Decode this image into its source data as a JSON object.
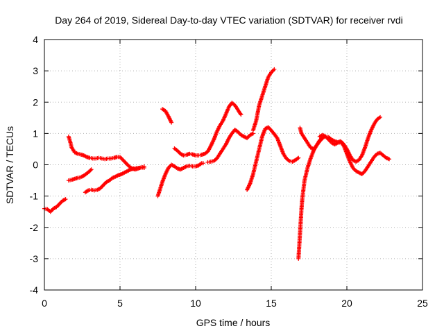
{
  "chart_data": {
    "type": "scatter",
    "title": "Day 264 of 2019, Sidereal Day-to-day VTEC variation (SDTVAR) for receiver rvdi",
    "xlabel": "GPS time / hours",
    "ylabel": "SDTVAR / TECUs",
    "xlim": [
      0,
      25
    ],
    "ylim": [
      -4,
      4
    ],
    "xticks": [
      "0",
      "5",
      "10",
      "15",
      "20",
      "25"
    ],
    "yticks": [
      "-4",
      "-3",
      "-2",
      "-1",
      "0",
      "1",
      "2",
      "3",
      "4"
    ],
    "grid": true,
    "legend": "none",
    "marker": "plus",
    "color": "#ff0000",
    "series": [
      {
        "x": [
          0.0,
          0.2,
          0.4,
          0.6,
          0.8,
          1.0,
          1.2,
          1.4
        ],
        "y": [
          -1.4,
          -1.42,
          -1.5,
          -1.4,
          -1.35,
          -1.25,
          -1.15,
          -1.1
        ]
      },
      {
        "x": [
          1.6,
          1.7,
          1.8,
          2.0,
          2.2,
          2.4,
          2.6,
          2.8,
          3.0,
          3.2,
          3.4,
          3.6,
          3.8,
          4.0,
          4.2,
          4.4,
          4.6,
          4.8,
          5.0,
          5.2,
          5.4,
          5.6,
          5.8,
          6.0,
          6.2,
          6.4,
          6.6
        ],
        "y": [
          0.9,
          0.75,
          0.55,
          0.4,
          0.35,
          0.33,
          0.3,
          0.25,
          0.22,
          0.2,
          0.2,
          0.22,
          0.2,
          0.18,
          0.2,
          0.2,
          0.22,
          0.25,
          0.25,
          0.15,
          0.05,
          -0.05,
          -0.12,
          -0.15,
          -0.12,
          -0.08,
          -0.1
        ]
      },
      {
        "x": [
          1.6,
          1.8,
          2.0,
          2.2,
          2.4,
          2.6,
          2.8,
          3.0,
          3.1
        ],
        "y": [
          -0.5,
          -0.48,
          -0.45,
          -0.42,
          -0.4,
          -0.35,
          -0.28,
          -0.2,
          -0.15
        ]
      },
      {
        "x": [
          2.7,
          2.9,
          3.1,
          3.3,
          3.5,
          3.7,
          3.9,
          4.1,
          4.3,
          4.5,
          4.7,
          4.9,
          5.1,
          5.3,
          5.5,
          5.7,
          5.9,
          6.1,
          6.3,
          6.5,
          6.6
        ],
        "y": [
          -0.88,
          -0.82,
          -0.8,
          -0.82,
          -0.8,
          -0.75,
          -0.65,
          -0.55,
          -0.5,
          -0.42,
          -0.38,
          -0.33,
          -0.3,
          -0.25,
          -0.2,
          -0.15,
          -0.12,
          -0.1,
          -0.1,
          -0.08,
          -0.05
        ]
      },
      {
        "x": [
          7.5,
          7.6,
          7.7,
          7.8,
          8.0,
          8.2,
          8.4,
          8.6,
          8.8,
          9.0,
          9.2,
          9.4,
          9.6,
          9.8,
          10.0,
          10.2,
          10.4,
          10.5
        ],
        "y": [
          -1.0,
          -0.85,
          -0.7,
          -0.55,
          -0.3,
          -0.1,
          0.0,
          -0.05,
          -0.12,
          -0.15,
          -0.1,
          -0.05,
          -0.03,
          -0.05,
          -0.05,
          -0.02,
          0.05,
          0.05
        ]
      },
      {
        "x": [
          7.8,
          8.0,
          8.2,
          8.4
        ],
        "y": [
          1.78,
          1.72,
          1.55,
          1.35
        ]
      },
      {
        "x": [
          8.6,
          8.8,
          9.0,
          9.2,
          9.4,
          9.6,
          9.8,
          10.0,
          10.2,
          10.4,
          10.6,
          10.8,
          11.0,
          11.2,
          11.4,
          11.6,
          11.8,
          12.0,
          12.2,
          12.4,
          12.6,
          12.8,
          13.0
        ],
        "y": [
          0.52,
          0.45,
          0.35,
          0.3,
          0.32,
          0.35,
          0.33,
          0.3,
          0.3,
          0.32,
          0.35,
          0.42,
          0.6,
          0.8,
          1.05,
          1.25,
          1.4,
          1.62,
          1.85,
          1.98,
          1.9,
          1.75,
          1.6
        ]
      },
      {
        "x": [
          10.8,
          11.0,
          11.2,
          11.4,
          11.6,
          11.8,
          12.0,
          12.2,
          12.4,
          12.6,
          12.8,
          13.0,
          13.2,
          13.4,
          13.6,
          13.8
        ],
        "y": [
          0.08,
          0.1,
          0.12,
          0.2,
          0.35,
          0.5,
          0.65,
          0.85,
          1.0,
          1.12,
          1.05,
          0.95,
          0.9,
          0.85,
          0.95,
          1.0
        ]
      },
      {
        "x": [
          13.4,
          13.6,
          13.8,
          14.0,
          14.2,
          14.4,
          14.6,
          14.8,
          15.0,
          15.2
        ],
        "y": [
          -0.8,
          -0.6,
          -0.3,
          0.1,
          0.5,
          0.9,
          1.15,
          1.2,
          1.1,
          0.98
        ]
      },
      {
        "x": [
          13.8,
          14.0,
          14.2,
          14.4,
          14.6,
          14.8,
          15.0,
          15.2
        ],
        "y": [
          1.1,
          1.4,
          1.9,
          2.2,
          2.5,
          2.8,
          2.95,
          3.05
        ]
      },
      {
        "x": [
          15.2,
          15.4,
          15.6,
          15.8,
          16.0,
          16.2,
          16.4,
          16.6,
          16.8
        ],
        "y": [
          0.98,
          0.85,
          0.6,
          0.35,
          0.2,
          0.12,
          0.1,
          0.15,
          0.22
        ]
      },
      {
        "x": [
          16.8,
          16.85,
          16.9,
          16.95,
          17.0,
          17.05,
          17.1,
          17.15,
          17.2,
          17.3,
          17.4,
          17.5,
          17.6,
          17.8,
          18.0,
          18.2,
          18.4
        ],
        "y": [
          -3.0,
          -2.6,
          -2.2,
          -1.8,
          -1.4,
          -1.1,
          -0.9,
          -0.7,
          -0.5,
          -0.3,
          -0.1,
          0.05,
          0.2,
          0.45,
          0.62,
          0.75,
          0.85
        ]
      },
      {
        "x": [
          16.9,
          17.0,
          17.2,
          17.4,
          17.6,
          17.8,
          18.0,
          18.2,
          18.4,
          18.6,
          18.8,
          19.0,
          19.2,
          19.4,
          19.6,
          19.8,
          20.0,
          20.2,
          20.4,
          20.6,
          20.8,
          21.0,
          21.2,
          21.4,
          21.6,
          21.8,
          22.0,
          22.2
        ],
        "y": [
          1.18,
          1.0,
          0.85,
          0.7,
          0.55,
          0.5,
          0.62,
          0.78,
          0.88,
          0.9,
          0.88,
          0.8,
          0.75,
          0.72,
          0.75,
          0.65,
          0.5,
          0.3,
          0.15,
          0.1,
          0.15,
          0.3,
          0.55,
          0.85,
          1.1,
          1.3,
          1.45,
          1.52
        ]
      },
      {
        "x": [
          18.2,
          18.4,
          18.6,
          18.8,
          19.0,
          19.2,
          19.4,
          19.6,
          19.8,
          20.0,
          20.2,
          20.4,
          20.6,
          20.8,
          21.0,
          21.2,
          21.4,
          21.6,
          21.8,
          22.0,
          22.2,
          22.4,
          22.6,
          22.8
        ],
        "y": [
          0.9,
          0.95,
          0.9,
          0.8,
          0.7,
          0.65,
          0.7,
          0.72,
          0.6,
          0.35,
          0.1,
          -0.1,
          -0.2,
          -0.25,
          -0.3,
          -0.2,
          -0.05,
          0.1,
          0.25,
          0.35,
          0.38,
          0.3,
          0.22,
          0.18
        ]
      }
    ]
  }
}
